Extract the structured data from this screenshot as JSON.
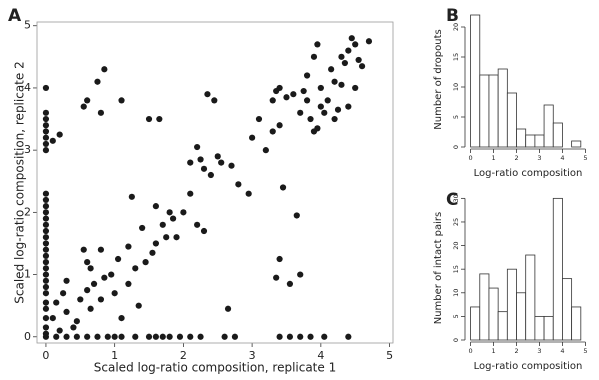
{
  "chart_data": [
    {
      "type": "scatter",
      "panel": "A",
      "color": "#1a1a1a",
      "xlabel": "Scaled log-ratio composition, replicate 1",
      "ylabel": "Scaled log-ratio composition, replicate 2",
      "xlim": [
        -0.13,
        5.05
      ],
      "ylim": [
        -0.1,
        5.06
      ],
      "xticks": [
        0,
        1,
        2,
        3,
        4,
        5
      ],
      "yticks": [
        0,
        1,
        2,
        3,
        4,
        5
      ],
      "x": [
        0,
        0,
        0,
        0,
        0,
        0,
        0,
        0,
        0,
        0,
        0,
        0,
        0,
        0,
        0,
        0,
        0,
        0,
        0,
        0,
        0,
        0,
        0,
        0,
        0,
        0,
        0,
        0,
        0,
        0,
        0,
        0.15,
        0.3,
        0.45,
        0.6,
        0.75,
        0.9,
        1.0,
        1.1,
        1.3,
        1.5,
        1.6,
        1.7,
        1.8,
        1.95,
        2.1,
        2.25,
        2.6,
        2.75,
        3.4,
        3.55,
        3.7,
        3.85,
        4.05,
        4.4,
        0.1,
        0.15,
        0.25,
        0.3,
        0.3,
        0.45,
        0.5,
        0.6,
        0.65,
        0.65,
        0.7,
        0.8,
        0.8,
        0.85,
        0.95,
        1.0,
        1.05,
        1.1,
        1.2,
        1.2,
        1.3,
        1.35,
        1.4,
        1.45,
        1.55,
        1.6,
        1.7,
        1.75,
        1.8,
        1.85,
        1.9,
        2.0,
        2.1,
        2.2,
        2.3,
        1.25,
        1.6,
        0.6,
        0.55,
        0.2,
        0.4,
        0.1,
        0.2,
        0.55,
        0.6,
        0.75,
        0.85,
        1.1,
        1.5,
        1.65,
        2.35,
        2.45,
        0.8,
        2.1,
        2.2,
        2.3,
        2.4,
        2.5,
        2.55,
        2.7,
        2.8,
        2.95,
        2.25,
        2.65,
        3.35,
        3.4,
        3.55,
        3.7,
        3.65,
        3.45,
        3.1,
        3.3,
        3.35,
        3.4,
        3.5,
        3.6,
        3.7,
        3.75,
        3.8,
        3.85,
        3.9,
        3.95,
        4.0,
        4.05,
        4.1,
        4.15,
        4.2,
        4.3,
        4.35,
        4.4,
        4.45,
        4.5,
        4.6,
        4.7,
        4.4,
        4.5,
        4.2,
        3.9,
        3.95,
        4.0,
        3.3,
        3.4,
        3.2,
        3.0,
        3.8,
        4.25,
        4.3,
        4.55
      ],
      "y": [
        0,
        0.05,
        0.15,
        0.3,
        0.45,
        0.55,
        0.7,
        0.8,
        0.9,
        1.0,
        1.1,
        1.2,
        1.3,
        1.4,
        1.5,
        1.6,
        1.7,
        1.8,
        1.9,
        2.0,
        2.1,
        2.2,
        2.3,
        3.0,
        3.1,
        3.2,
        3.3,
        3.4,
        3.5,
        3.6,
        4.0,
        0,
        0,
        0,
        0,
        0,
        0,
        0,
        0,
        0,
        0,
        0,
        0,
        0,
        0,
        0,
        0,
        0,
        0,
        0,
        0,
        0,
        0,
        0,
        0,
        0.3,
        0.55,
        0.7,
        0.4,
        0.9,
        0.25,
        0.6,
        0.75,
        1.1,
        0.45,
        0.85,
        0.6,
        1.4,
        0.95,
        1.0,
        0.7,
        1.25,
        0.3,
        0.85,
        1.45,
        1.1,
        0.5,
        1.75,
        1.2,
        1.35,
        1.5,
        1.8,
        1.6,
        2.0,
        1.9,
        1.6,
        2.0,
        2.3,
        1.8,
        1.7,
        2.25,
        2.1,
        1.2,
        1.4,
        0.1,
        0.15,
        3.15,
        3.25,
        3.7,
        3.8,
        4.1,
        4.3,
        3.8,
        3.5,
        3.5,
        3.9,
        3.8,
        3.6,
        2.8,
        3.05,
        2.7,
        2.6,
        2.9,
        2.8,
        2.75,
        2.45,
        2.3,
        2.85,
        0.45,
        0.95,
        1.25,
        0.85,
        1.0,
        1.95,
        2.4,
        3.5,
        3.8,
        3.95,
        4.0,
        3.85,
        3.9,
        3.6,
        3.95,
        4.2,
        3.5,
        3.3,
        3.35,
        3.7,
        3.6,
        3.8,
        4.3,
        4.1,
        4.5,
        4.4,
        4.6,
        4.8,
        4.7,
        4.35,
        4.75,
        3.7,
        4.0,
        3.5,
        4.5,
        4.7,
        4.0,
        3.3,
        3.4,
        3.0,
        3.2,
        3.8,
        3.65,
        4.05,
        4.45
      ]
    },
    {
      "type": "histogram",
      "panel": "B",
      "color": "#ffffff",
      "xlabel": "Log-ratio composition",
      "ylabel": "Number of dropouts",
      "bins": [
        0,
        0.4,
        0.8,
        1.2,
        1.6,
        2.0,
        2.4,
        2.8,
        3.2,
        3.6,
        4.0,
        4.4,
        4.8
      ],
      "counts": [
        22,
        12,
        12,
        13,
        9,
        3,
        2,
        2,
        7,
        4,
        0,
        1
      ],
      "xlim": [
        -0.2,
        5.2
      ],
      "ylim": [
        0,
        22.5
      ],
      "xticks": [
        0,
        1,
        2,
        3,
        4,
        5
      ],
      "yticks": [
        0,
        5,
        10,
        15,
        20
      ]
    },
    {
      "type": "histogram",
      "panel": "C",
      "color": "#ffffff",
      "xlabel": "Log-ratio composition",
      "ylabel": "Number of intact pairs",
      "bins": [
        0,
        0.4,
        0.8,
        1.2,
        1.6,
        2.0,
        2.4,
        2.8,
        3.2,
        3.6,
        4.0,
        4.4,
        4.8
      ],
      "counts": [
        7,
        14,
        11,
        6,
        15,
        10,
        18,
        5,
        5,
        30,
        13,
        7
      ],
      "xlim": [
        -0.2,
        5.2
      ],
      "ylim": [
        0,
        30.5
      ],
      "xticks": [
        0,
        1,
        2,
        3,
        4,
        5
      ],
      "yticks": [
        0,
        5,
        10,
        15,
        20,
        25,
        30
      ]
    }
  ]
}
